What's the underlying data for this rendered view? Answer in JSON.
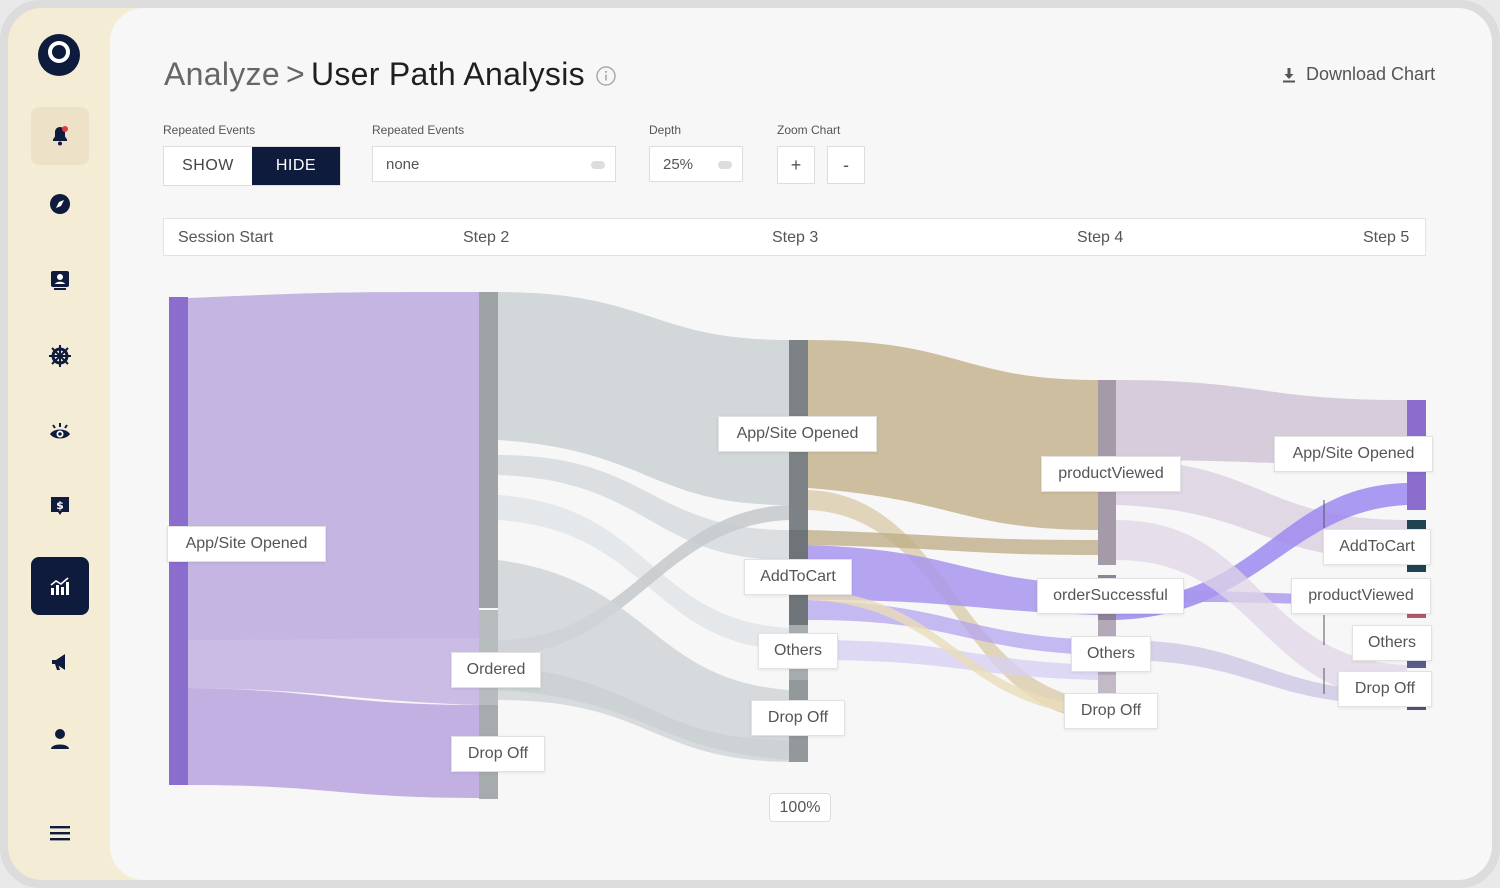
{
  "header": {
    "breadcrumb_parent": "Analyze",
    "breadcrumb_sep": ">",
    "title": "User Path Analysis",
    "download_label": "Download Chart"
  },
  "controls": {
    "repeated_toggle_label": "Repeated Events",
    "show_label": "SHOW",
    "hide_label": "HIDE",
    "selected_toggle": "HIDE",
    "repeated_select_label": "Repeated Events",
    "repeated_select_value": "none",
    "depth_label": "Depth",
    "depth_value": "25%",
    "zoom_label": "Zoom Chart",
    "zoom_in": "+",
    "zoom_out": "-"
  },
  "steps": [
    "Session Start",
    "Step 2",
    "Step 3",
    "Step 4",
    "Step 5"
  ],
  "zoom_level": "100%",
  "sidebar": {
    "items": [
      "notifications-icon",
      "compass-icon",
      "contacts-icon",
      "helm-icon",
      "eye-icon",
      "dollar-icon",
      "analytics-icon",
      "megaphone-icon",
      "user-icon",
      "menu-icon"
    ],
    "active": "analytics-icon"
  },
  "nodes": {
    "step1": [
      "App/Site Opened"
    ],
    "step2": [
      "Ordered",
      "Drop Off"
    ],
    "step3": [
      "App/Site Opened",
      "AddToCart",
      "Others",
      "Drop Off"
    ],
    "step4": [
      "productViewed",
      "orderSuccessful",
      "Others",
      "Drop Off"
    ],
    "step5": [
      "App/Site Opened",
      "AddToCart",
      "productViewed",
      "Others",
      "Drop Off"
    ]
  },
  "colors": {
    "sidebar_bg": "#f5ecd6",
    "active_nav": "#0f1b3d",
    "purple": "#8b6fd0",
    "gray_flow": "#c9cfd2",
    "tan_flow": "#c6b48f"
  }
}
